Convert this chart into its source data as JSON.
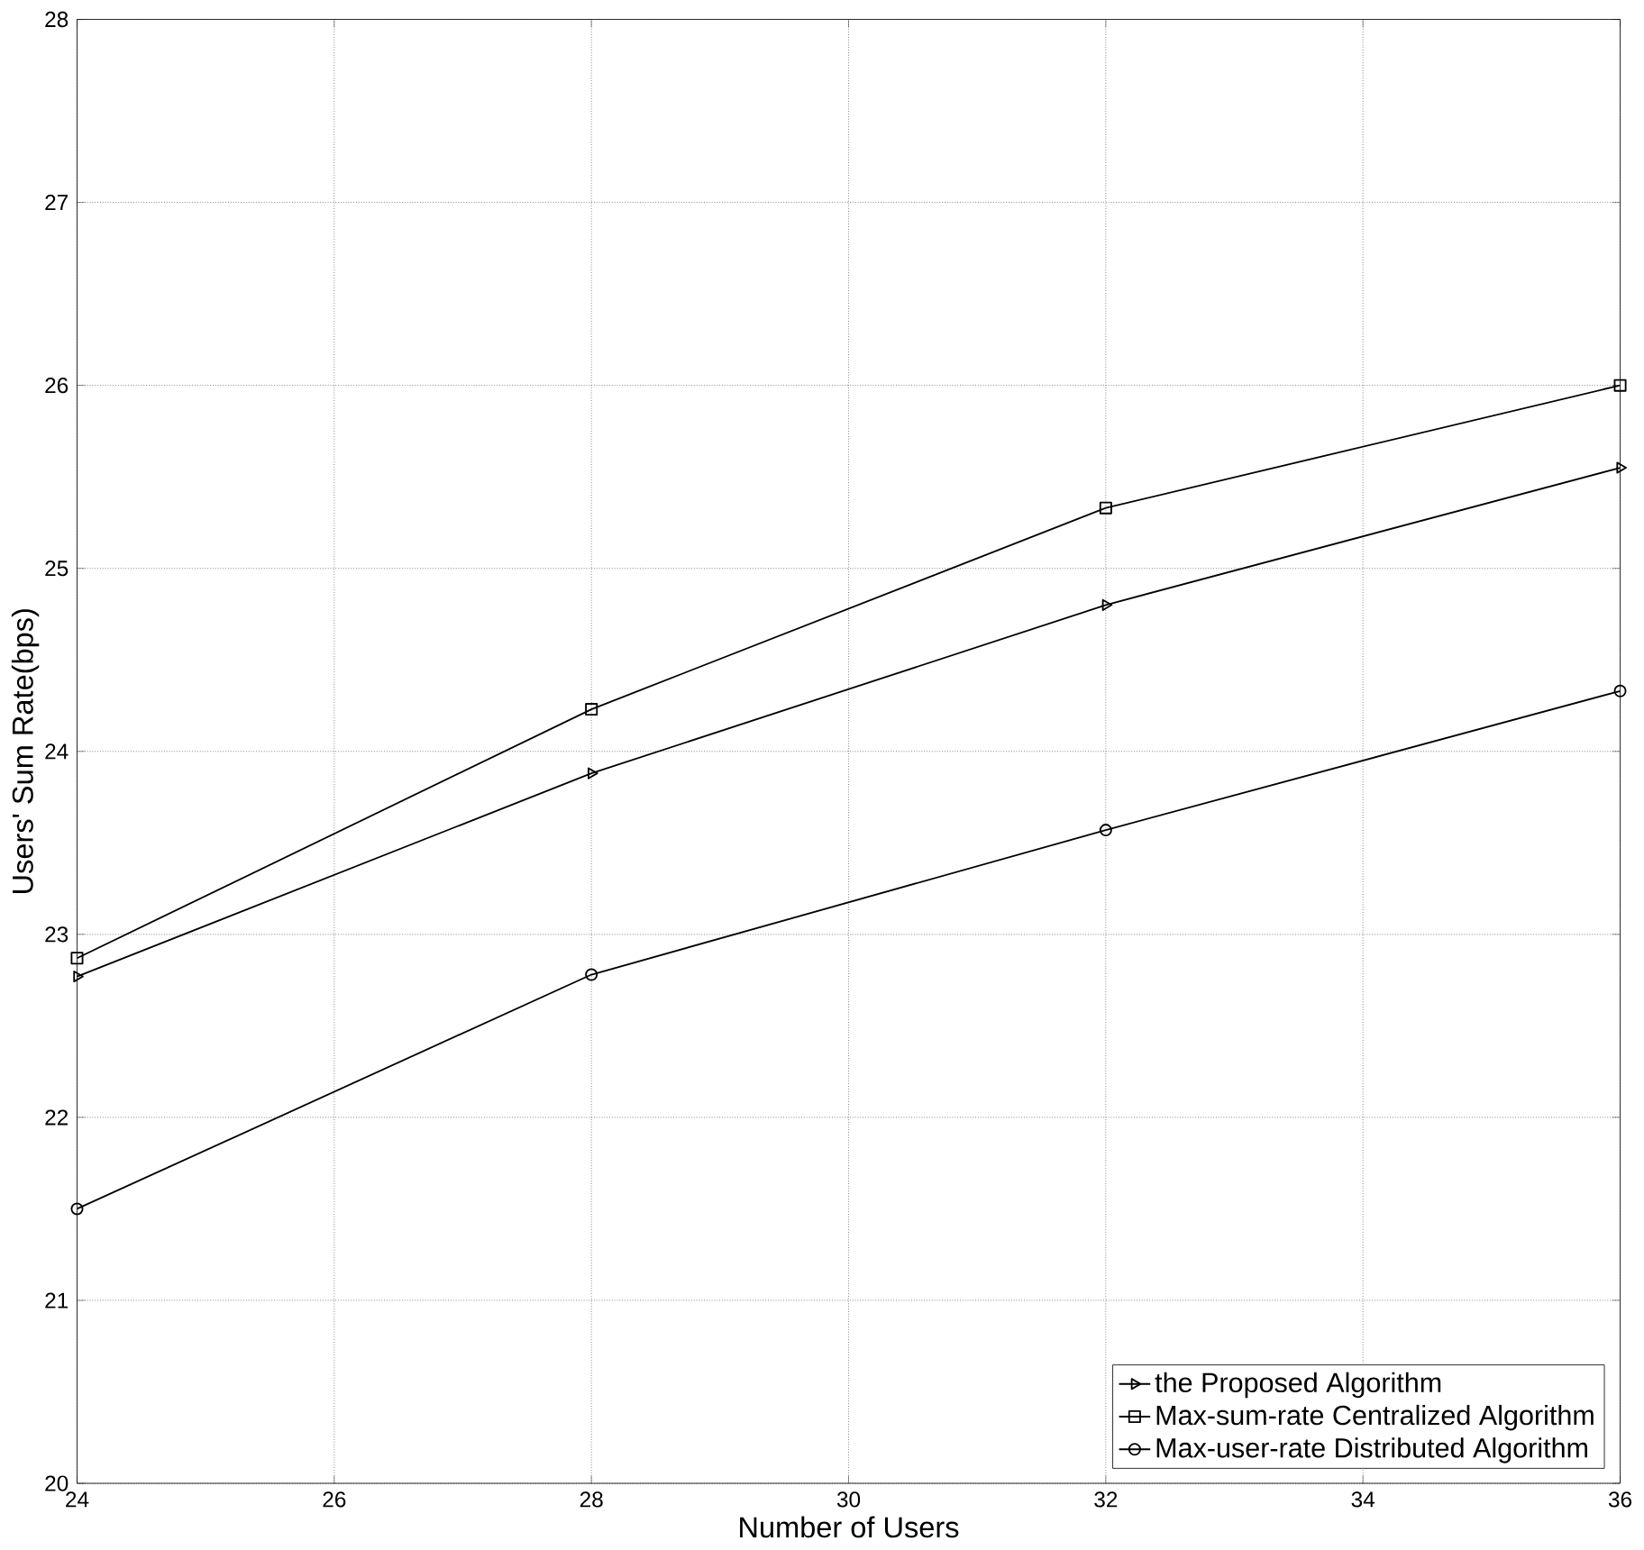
{
  "chart_data": {
    "type": "line",
    "xlabel": "Number of Users",
    "ylabel": "Users' Sum Rate(bps)",
    "x": [
      24,
      28,
      32,
      36
    ],
    "xlim": [
      24,
      36
    ],
    "xticks": [
      24,
      26,
      28,
      30,
      32,
      34,
      36
    ],
    "ylim": [
      20,
      28
    ],
    "yticks": [
      20,
      21,
      22,
      23,
      24,
      25,
      26,
      27,
      28
    ],
    "grid": true,
    "legend": "bottom right",
    "line_style": "solid",
    "series": [
      {
        "name": "the Proposed Algorithm",
        "color": "#000000",
        "marker": "triangle",
        "values": [
          22.77,
          23.88,
          24.8,
          25.55
        ]
      },
      {
        "name": "Max-sum-rate Centralized Algorithm",
        "color": "#000000",
        "marker": "square",
        "values": [
          22.87,
          24.23,
          25.33,
          26.0
        ]
      },
      {
        "name": "Max-user-rate Distributed Algorithm",
        "color": "#000000",
        "marker": "circle",
        "values": [
          21.5,
          22.78,
          23.57,
          24.33
        ]
      }
    ]
  }
}
